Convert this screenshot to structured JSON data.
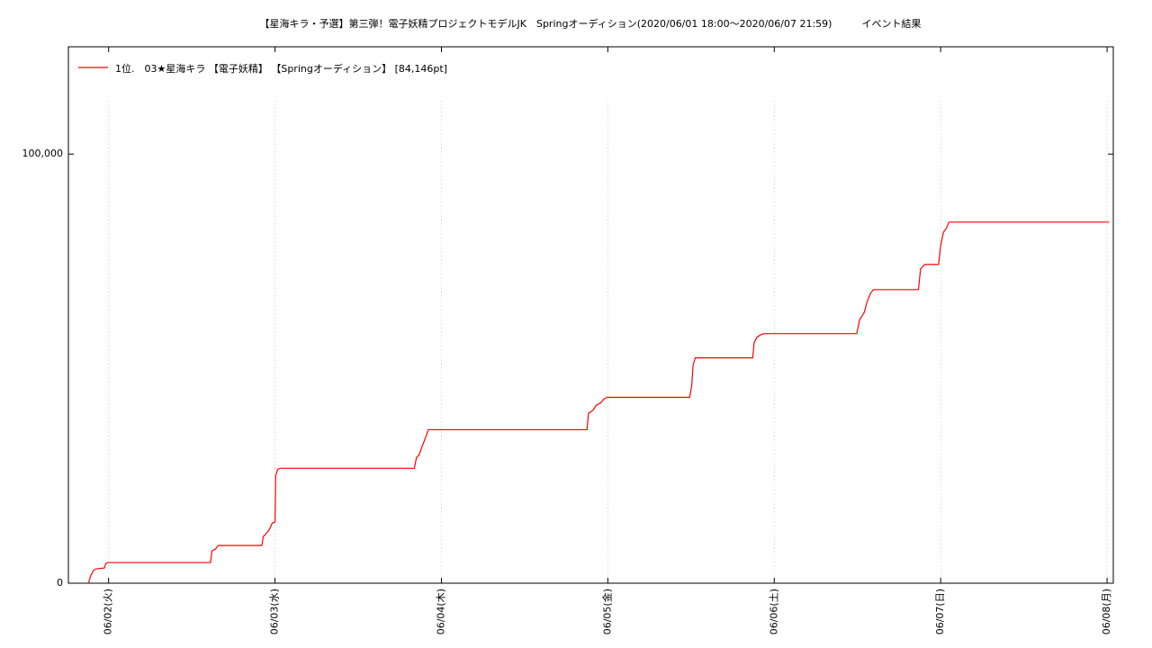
{
  "chart_data": {
    "type": "line",
    "title": "【星海キラ・予選】第三弾！電子妖精プロジェクトモデルJK　Springオーディション(2020/06/01 18:00〜2020/06/07 21:59)　　　イベント結果",
    "x": [
      -2.9,
      -2.6,
      -2.2,
      -1.8,
      -0.6,
      -0.4,
      -0.1,
      14.7,
      14.9,
      15.4,
      15.8,
      22.1,
      22.3,
      22.7,
      23.2,
      23.6,
      24.0,
      24.1,
      24.4,
      24.8,
      44.1,
      44.4,
      44.8,
      45.1,
      45.5,
      45.8,
      46.1,
      69.0,
      69.2,
      69.9,
      70.3,
      71.0,
      71.4,
      71.9,
      83.8,
      84.1,
      84.3,
      84.6,
      92.9,
      93.1,
      93.5,
      94.1,
      94.6,
      107.9,
      108.3,
      109.0,
      109.4,
      109.9,
      110.3,
      116.8,
      117.1,
      117.7,
      119.7,
      120.0,
      120.4,
      120.8,
      121.2,
      144.3
    ],
    "series": [
      {
        "name": "1位.　03★星海キラ 【電子妖精】 【Springオーディション】 [84,146pt]",
        "color": "#ff0000",
        "values": [
          0,
          1674,
          2929,
          3347,
          3556,
          4602,
          4812,
          4812,
          7531,
          7950,
          8786,
          8786,
          10878,
          11506,
          12552,
          14016,
          14226,
          25104,
          26568,
          26778,
          26778,
          29288,
          29916,
          31380,
          33054,
          34309,
          35773,
          35773,
          39539,
          40376,
          41422,
          42049,
          42886,
          43304,
          43304,
          46024,
          50836,
          52509,
          52509,
          56066,
          57321,
          57949,
          58158,
          58158,
          61296,
          63178,
          65688,
          67572,
          68408,
          68408,
          73220,
          74266,
          74266,
          78659,
          81797,
          82634,
          84146,
          84146
        ]
      }
    ],
    "xlim": [
      -5.8,
      144.9
    ],
    "ylim": [
      0,
      125000
    ],
    "xticks": [
      {
        "value": 0,
        "label": "06/02(火)"
      },
      {
        "value": 24,
        "label": "06/03(水)"
      },
      {
        "value": 48,
        "label": "06/04(木)"
      },
      {
        "value": 72,
        "label": "06/05(金)"
      },
      {
        "value": 96,
        "label": "06/06(土)"
      },
      {
        "value": 120,
        "label": "06/07(日)"
      },
      {
        "value": 144,
        "label": "06/08(月)"
      }
    ],
    "yticks": [
      0,
      {
        "value": 100000,
        "label": "100,000"
      }
    ],
    "grid": true,
    "grid_color": "#a0f0a0",
    "legend": "top-left"
  }
}
